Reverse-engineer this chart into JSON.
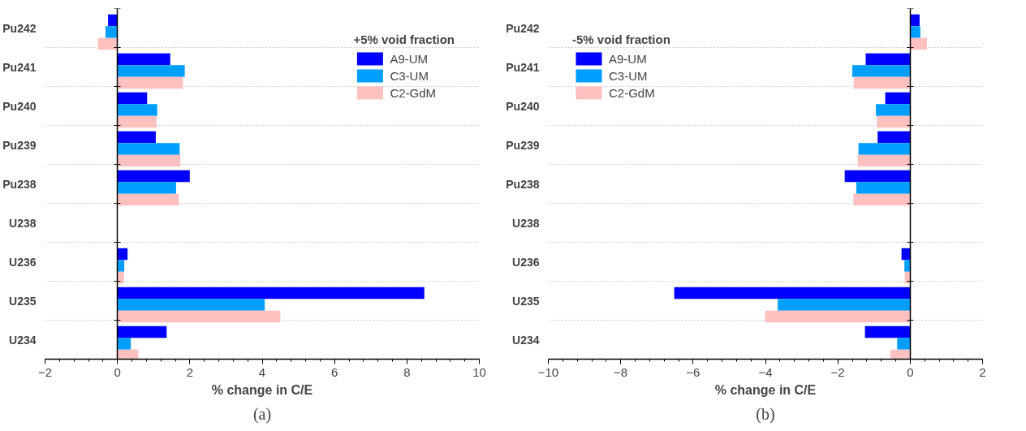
{
  "chart_data": [
    {
      "type": "bar",
      "orientation": "horizontal",
      "xlabel": "% change in C/E",
      "legend_title": "+5% void fraction",
      "legend": "top right",
      "grid": "y",
      "categories": [
        "Pu242",
        "Pu241",
        "Pu240",
        "Pu239",
        "Pu238",
        "U238",
        "U236",
        "U235",
        "U234"
      ],
      "xlim": [
        -2,
        10
      ],
      "xticks": [
        -2,
        0,
        2,
        4,
        6,
        8,
        10
      ],
      "series": [
        {
          "name": "A9-UM",
          "color": "#0000ff",
          "values": [
            -0.26,
            1.46,
            0.82,
            1.06,
            2.0,
            0.0,
            0.28,
            8.48,
            1.36
          ]
        },
        {
          "name": "C3-UM",
          "color": "#009fff",
          "values": [
            -0.33,
            1.86,
            1.1,
            1.72,
            1.62,
            null,
            0.19,
            4.07,
            0.37
          ]
        },
        {
          "name": "C2-GdM",
          "color": "#ffc0c0",
          "values": [
            -0.54,
            1.81,
            1.08,
            1.74,
            1.7,
            null,
            0.18,
            4.5,
            0.58
          ]
        }
      ],
      "annotations": [
        "(a)"
      ]
    },
    {
      "type": "bar",
      "orientation": "horizontal",
      "xlabel": "% change in C/E",
      "legend_title": "-5% void fraction",
      "legend": "top left",
      "grid": "y",
      "categories": [
        "Pu242",
        "Pu241",
        "Pu240",
        "Pu239",
        "Pu238",
        "U238",
        "U236",
        "U235",
        "U234"
      ],
      "xlim": [
        -10,
        2
      ],
      "xticks": [
        -10,
        -8,
        -6,
        -4,
        -2,
        0,
        2
      ],
      "series": [
        {
          "name": "A9-UM",
          "color": "#0000ff",
          "values": [
            0.26,
            -1.23,
            -0.69,
            -0.9,
            -1.81,
            0.0,
            -0.24,
            -6.52,
            -1.25
          ]
        },
        {
          "name": "C3-UM",
          "color": "#009fff",
          "values": [
            0.28,
            -1.6,
            -0.95,
            -1.43,
            -1.49,
            null,
            -0.16,
            -3.66,
            -0.36
          ]
        },
        {
          "name": "C2-GdM",
          "color": "#ffc0c0",
          "values": [
            0.46,
            -1.56,
            -0.92,
            -1.45,
            -1.57,
            0.0,
            -0.15,
            -4.01,
            -0.55
          ]
        }
      ],
      "annotations": [
        "(b)"
      ]
    }
  ]
}
